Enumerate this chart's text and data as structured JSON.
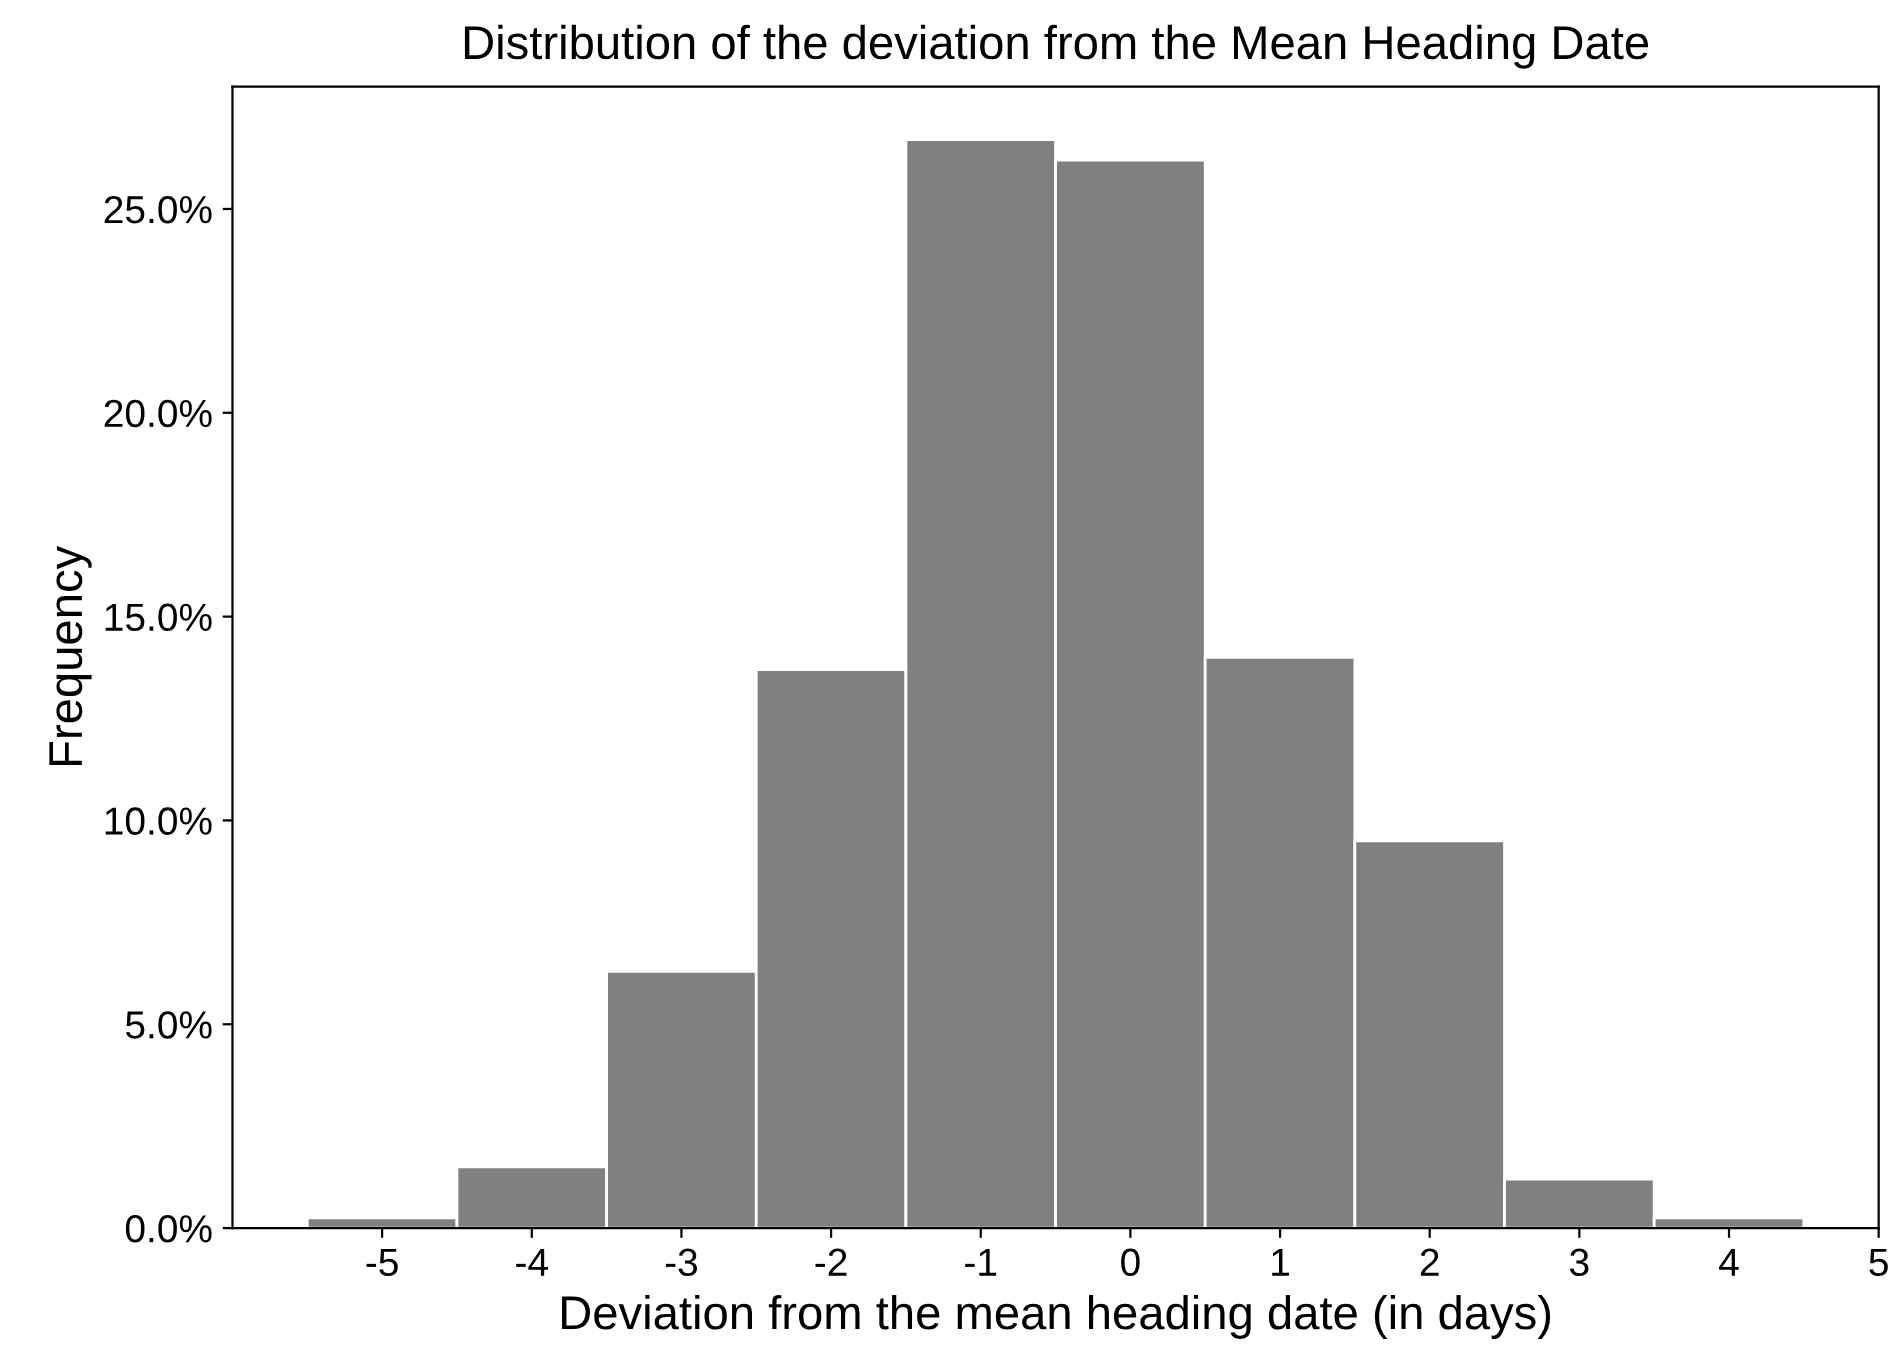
{
  "chart_data": {
    "type": "histogram",
    "title": "Distribution of the deviation from the Mean Heading Date",
    "xlabel": "Deviation from the mean heading date (in days)",
    "ylabel": "Frequency",
    "bins": [
      -5.5,
      -4.5,
      -3.5,
      -2.5,
      -1.5,
      -0.5,
      0.5,
      1.5,
      2.5,
      3.5,
      4.5
    ],
    "values": [
      0.25,
      1.5,
      6.3,
      13.7,
      26.7,
      26.2,
      14.0,
      9.5,
      1.2,
      0.25
    ],
    "color": "#808080",
    "xlim": [
      -6,
      5
    ],
    "xticks": [
      -5,
      -4,
      -3,
      -2,
      -1,
      0,
      1,
      2,
      3,
      4,
      5
    ],
    "ylim": [
      0,
      28
    ],
    "yticks": [
      {
        "value": 0,
        "label": "0.0%"
      },
      {
        "value": 5,
        "label": "5.0%"
      },
      {
        "value": 10,
        "label": "10.0%"
      },
      {
        "value": 15,
        "label": "15.0%"
      },
      {
        "value": 20,
        "label": "20.0%"
      },
      {
        "value": 25,
        "label": "25.0%"
      }
    ],
    "grid": false,
    "legend": false
  }
}
